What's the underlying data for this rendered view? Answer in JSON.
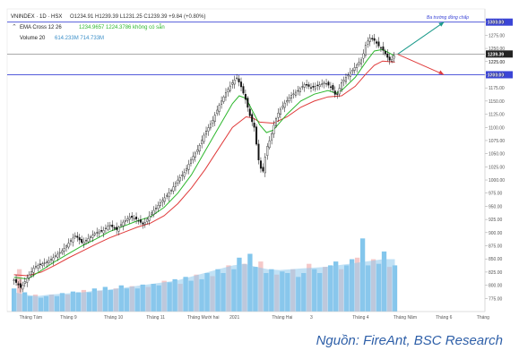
{
  "header": {
    "symbol_line": "VNINDEX · 1D · HSX",
    "ohlc_text": "O1234.91  H1239.39  L1231.25  C1239.39 +9.84 (+0.80%)",
    "ema_label": "EMA Cross 12 26",
    "ema_values": "1234.9657  1224.3786  không có sẵn",
    "volume_label": "Volume 20",
    "volume_values": "614.233M  714.733M"
  },
  "annotations": {
    "zone_label": "Ba trường đồng chấp",
    "level_top_label": "1300.00",
    "level_mid_label": "1239.39",
    "level_low_label": "1200.00",
    "level_mid_sub": "1225.00"
  },
  "source": "Nguồn: FireAnt, BSC Research",
  "colors": {
    "candle": "#111111",
    "ema_fast": "#2db72d",
    "ema_slow": "#e03b3b",
    "level_line": "#3b45d6",
    "arrow_up": "#1a9a8a",
    "arrow_down": "#e03b3b",
    "vol_up": "#5ab3e6",
    "vol_down": "#f2b6b6",
    "vol_ma": "#8ec8ec"
  },
  "chart_data": {
    "type": "candlestick",
    "title": "",
    "ylim": [
      750,
      1325
    ],
    "y_ticks": [
      "1300.00",
      "1275.00",
      "1250.00",
      "1225.00",
      "1200.00",
      "1175.00",
      "1150.00",
      "1125.00",
      "1100.00",
      "1075.00",
      "1050.00",
      "1025.00",
      "1000.00",
      "975.00",
      "950.00",
      "925.00",
      "900.00",
      "875.00",
      "850.00",
      "825.00",
      "800.00",
      "775.00"
    ],
    "x_ticks": [
      "Tháng Tám",
      "Tháng 9",
      "Tháng 10",
      "Tháng 11",
      "Tháng Mười hai",
      "2021",
      "Tháng Hai",
      "3",
      "Tháng 4",
      "Tháng Năm",
      "Tháng 6",
      "Tháng"
    ],
    "x_tick_positions": [
      0,
      30,
      62,
      93,
      123,
      154,
      185,
      213,
      244,
      274,
      305,
      335
    ],
    "x_range": [
      -5,
      345
    ],
    "close_path": [
      [
        0,
        810
      ],
      [
        5,
        795
      ],
      [
        10,
        815
      ],
      [
        15,
        835
      ],
      [
        20,
        840
      ],
      [
        25,
        845
      ],
      [
        30,
        855
      ],
      [
        35,
        865
      ],
      [
        40,
        880
      ],
      [
        45,
        895
      ],
      [
        50,
        880
      ],
      [
        55,
        890
      ],
      [
        60,
        900
      ],
      [
        65,
        903
      ],
      [
        70,
        915
      ],
      [
        75,
        905
      ],
      [
        80,
        920
      ],
      [
        85,
        930
      ],
      [
        90,
        925
      ],
      [
        95,
        915
      ],
      [
        100,
        935
      ],
      [
        105,
        950
      ],
      [
        110,
        965
      ],
      [
        115,
        980
      ],
      [
        120,
        1000
      ],
      [
        125,
        1015
      ],
      [
        130,
        1040
      ],
      [
        135,
        1060
      ],
      [
        140,
        1090
      ],
      [
        145,
        1110
      ],
      [
        150,
        1140
      ],
      [
        155,
        1165
      ],
      [
        160,
        1185
      ],
      [
        163,
        1195
      ],
      [
        166,
        1180
      ],
      [
        170,
        1150
      ],
      [
        173,
        1120
      ],
      [
        176,
        1100
      ],
      [
        179,
        1040
      ],
      [
        182,
        1010
      ],
      [
        185,
        1060
      ],
      [
        188,
        1080
      ],
      [
        191,
        1110
      ],
      [
        194,
        1130
      ],
      [
        198,
        1145
      ],
      [
        203,
        1160
      ],
      [
        208,
        1170
      ],
      [
        213,
        1182
      ],
      [
        218,
        1175
      ],
      [
        223,
        1180
      ],
      [
        228,
        1185
      ],
      [
        233,
        1175
      ],
      [
        236,
        1158
      ],
      [
        240,
        1185
      ],
      [
        245,
        1200
      ],
      [
        250,
        1215
      ],
      [
        255,
        1230
      ],
      [
        258,
        1260
      ],
      [
        261,
        1270
      ],
      [
        264,
        1265
      ],
      [
        267,
        1255
      ],
      [
        270,
        1248
      ],
      [
        273,
        1235
      ],
      [
        276,
        1225
      ],
      [
        279,
        1239
      ]
    ],
    "ema_fast": [
      [
        0,
        815
      ],
      [
        10,
        812
      ],
      [
        20,
        828
      ],
      [
        30,
        845
      ],
      [
        40,
        860
      ],
      [
        50,
        875
      ],
      [
        60,
        888
      ],
      [
        70,
        902
      ],
      [
        80,
        912
      ],
      [
        90,
        922
      ],
      [
        100,
        930
      ],
      [
        110,
        948
      ],
      [
        120,
        975
      ],
      [
        130,
        1010
      ],
      [
        140,
        1055
      ],
      [
        150,
        1100
      ],
      [
        160,
        1145
      ],
      [
        165,
        1160
      ],
      [
        170,
        1155
      ],
      [
        175,
        1130
      ],
      [
        180,
        1105
      ],
      [
        185,
        1090
      ],
      [
        190,
        1095
      ],
      [
        200,
        1125
      ],
      [
        210,
        1150
      ],
      [
        220,
        1163
      ],
      [
        230,
        1170
      ],
      [
        236,
        1165
      ],
      [
        240,
        1170
      ],
      [
        250,
        1195
      ],
      [
        258,
        1225
      ],
      [
        264,
        1245
      ],
      [
        270,
        1248
      ],
      [
        276,
        1240
      ],
      [
        279,
        1235
      ]
    ],
    "ema_slow": [
      [
        0,
        820
      ],
      [
        10,
        818
      ],
      [
        20,
        825
      ],
      [
        30,
        838
      ],
      [
        40,
        852
      ],
      [
        50,
        865
      ],
      [
        60,
        878
      ],
      [
        70,
        890
      ],
      [
        80,
        900
      ],
      [
        90,
        910
      ],
      [
        100,
        918
      ],
      [
        110,
        932
      ],
      [
        120,
        955
      ],
      [
        130,
        985
      ],
      [
        140,
        1020
      ],
      [
        150,
        1060
      ],
      [
        160,
        1100
      ],
      [
        170,
        1120
      ],
      [
        175,
        1118
      ],
      [
        180,
        1110
      ],
      [
        190,
        1108
      ],
      [
        200,
        1120
      ],
      [
        210,
        1138
      ],
      [
        220,
        1150
      ],
      [
        230,
        1158
      ],
      [
        240,
        1160
      ],
      [
        250,
        1178
      ],
      [
        258,
        1202
      ],
      [
        264,
        1218
      ],
      [
        270,
        1226
      ],
      [
        279,
        1224
      ]
    ],
    "volume_relative": [
      0.3,
      0.55,
      0.25,
      0.2,
      0.22,
      0.18,
      0.2,
      0.22,
      0.2,
      0.24,
      0.22,
      0.26,
      0.25,
      0.28,
      0.25,
      0.3,
      0.27,
      0.32,
      0.28,
      0.3,
      0.34,
      0.3,
      0.33,
      0.3,
      0.35,
      0.32,
      0.36,
      0.34,
      0.4,
      0.38,
      0.42,
      0.36,
      0.45,
      0.4,
      0.48,
      0.42,
      0.5,
      0.46,
      0.55,
      0.5,
      0.6,
      0.55,
      0.7,
      0.62,
      0.75,
      0.58,
      0.65,
      0.5,
      0.55,
      0.48,
      0.52,
      0.5,
      0.55,
      0.45,
      0.5,
      0.62,
      0.55,
      0.5,
      0.58,
      0.6,
      0.65,
      0.55,
      0.6,
      0.68,
      0.7,
      0.95,
      0.6,
      0.68,
      0.62,
      0.78,
      0.58,
      0.6
    ],
    "volume_ma_relative": [
      0.25,
      0.22,
      0.2,
      0.22,
      0.23,
      0.24,
      0.25,
      0.27,
      0.28,
      0.3,
      0.32,
      0.34,
      0.36,
      0.38,
      0.4,
      0.44,
      0.48,
      0.52,
      0.56,
      0.6,
      0.62,
      0.58,
      0.55,
      0.54,
      0.55,
      0.56,
      0.57,
      0.58,
      0.6,
      0.62,
      0.64,
      0.66,
      0.68,
      0.68
    ],
    "levels": [
      1300,
      1239.39,
      1200
    ]
  }
}
